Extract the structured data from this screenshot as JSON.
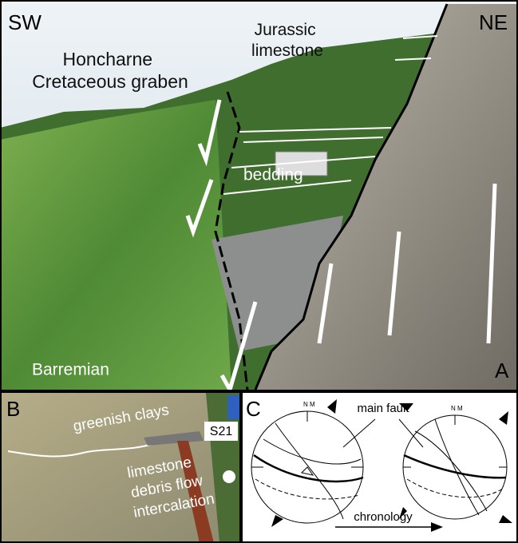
{
  "panel_a": {
    "label": "A",
    "left_corner": "SW",
    "right_corner": "NE",
    "upper_unit": [
      "Jurassic",
      "limestone"
    ],
    "graben": [
      "Honcharne",
      "Cretaceous graben"
    ],
    "bedding": "bedding",
    "lower_unit": "Barremian"
  },
  "panel_b": {
    "label": "B",
    "clays": "greenish clays",
    "site": "S21",
    "debris": [
      "limestone",
      "debris flow",
      "intercalation"
    ]
  },
  "panel_c": {
    "label": "C",
    "main_fault": "main fault",
    "north_labels": [
      "N",
      "M",
      "N",
      "M"
    ],
    "chronology": "chronology"
  }
}
